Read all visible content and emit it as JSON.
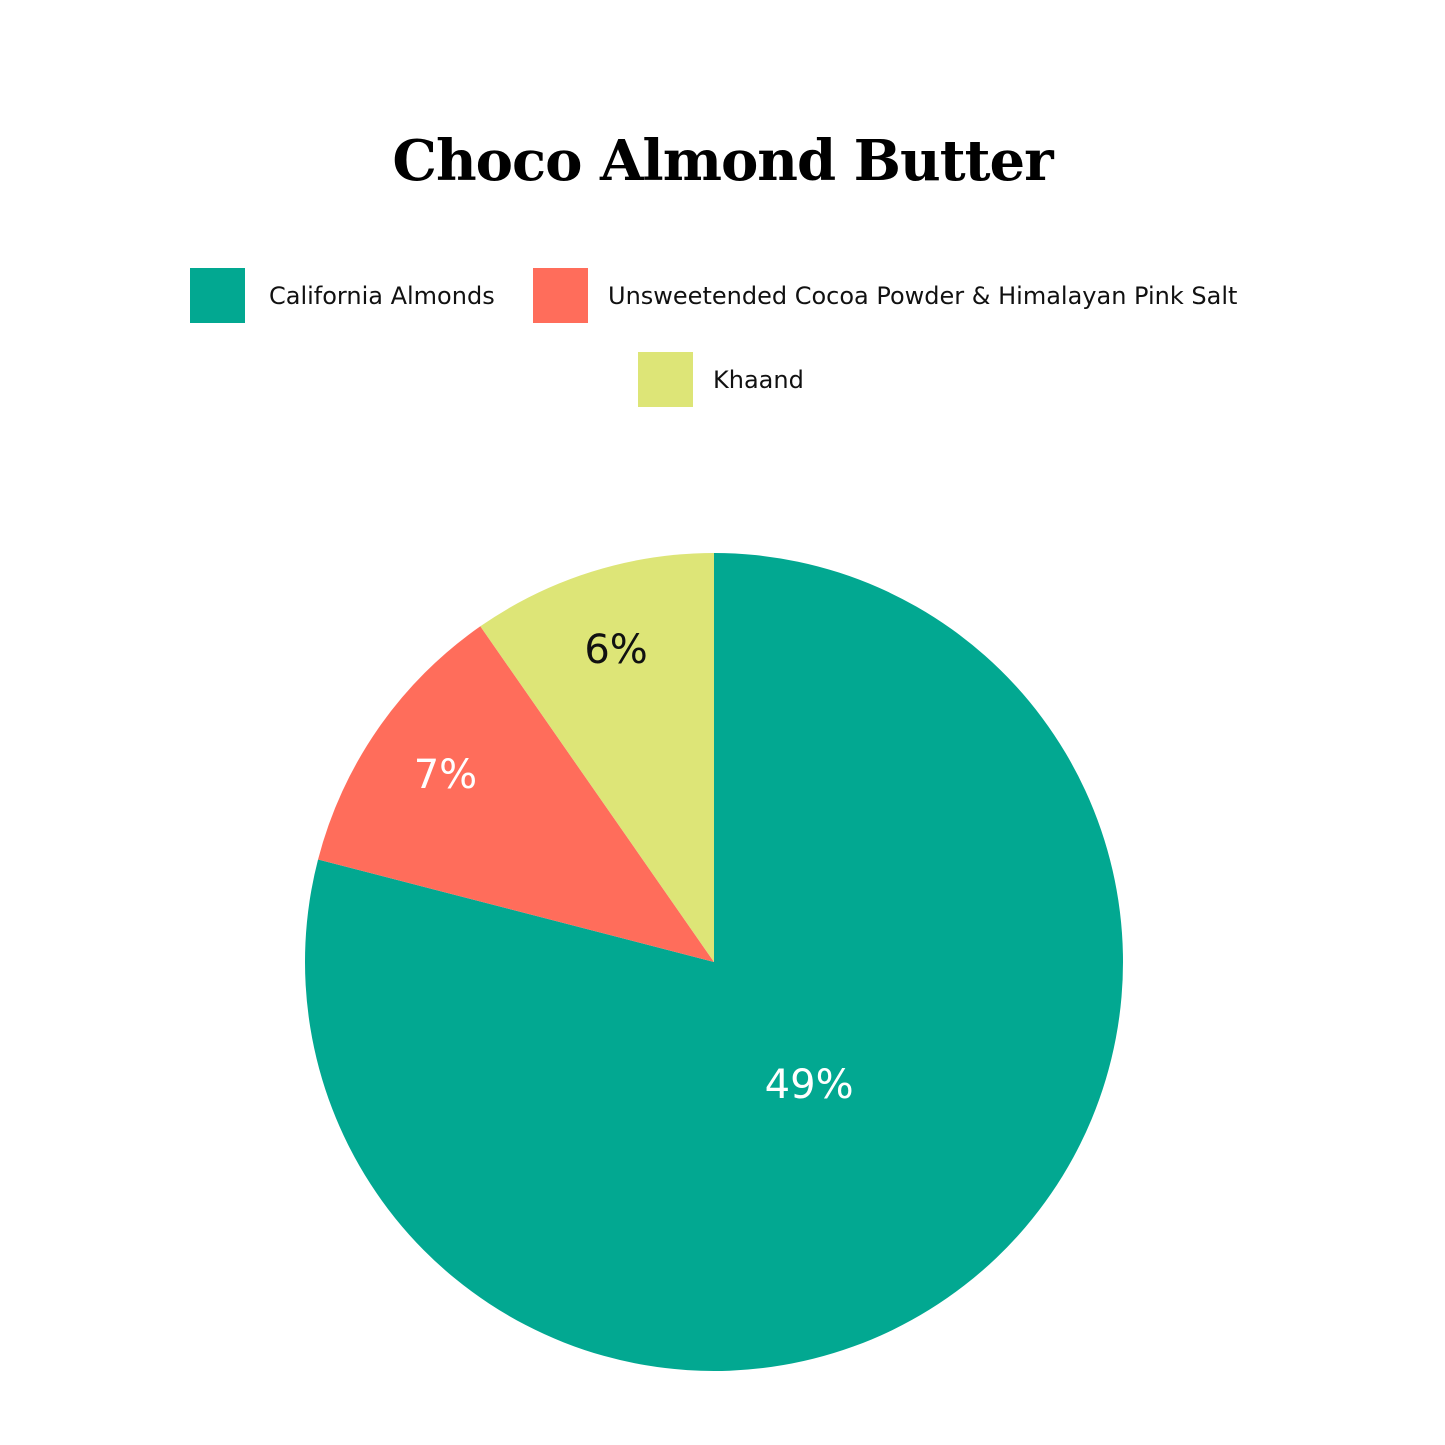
{
  "chart_data": {
    "type": "pie",
    "title": "Choco Almond Butter",
    "legend_position": "top",
    "slices": [
      {
        "name": "California Almonds",
        "value": 49,
        "label": "49%",
        "color": "#02A891",
        "label_color": "#ffffff"
      },
      {
        "name": "Unsweetended Cocoa Powder & Himalayan Pink Salt",
        "value": 7,
        "label": "7%",
        "color": "#FF6D5B",
        "label_color": "#ffffff"
      },
      {
        "name": "Khaand",
        "value": 6,
        "label": "6%",
        "color": "#DDE577",
        "label_color": "#111111"
      }
    ]
  }
}
